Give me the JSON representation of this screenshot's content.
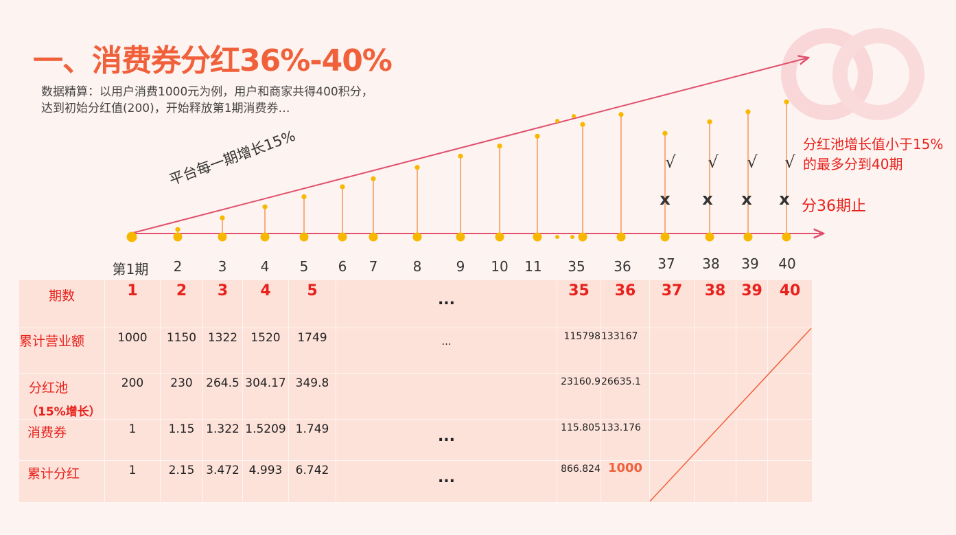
{
  "title": "一、消费券分红36%-40%",
  "subtitle": "数据精算：以用户消费1000元为例，用户和商家共得400积分，达到初始分红值(200)，开始释放第1期消费券…",
  "growth_label": "平台每一期增长15%",
  "note_growth": "分红池增长值小于15%的最多分到40期",
  "note_stop": "分36期止",
  "timeline_ticks": [
    "第1期",
    "2",
    "3",
    "4",
    "5",
    "6",
    "7",
    "8",
    "9",
    "10",
    "11",
    "35",
    "36",
    "37",
    "38",
    "39",
    "40"
  ],
  "check_mark": "√",
  "cross_mark": "x",
  "table": {
    "header_label": "期数",
    "periods": [
      "1",
      "2",
      "3",
      "4",
      "5",
      "...",
      "35",
      "36",
      "37",
      "38",
      "39",
      "40"
    ],
    "rows": [
      {
        "label": "累计营业额",
        "values": [
          "1000",
          "1150",
          "1322",
          "1520",
          "1749",
          "...",
          "115798",
          "133167",
          "",
          "",
          "",
          ""
        ]
      },
      {
        "label": "分红池",
        "label2": "（15%增长）",
        "values": [
          "200",
          "230",
          "264.5",
          "304.17",
          "349.8",
          "",
          "23160.9",
          "26635.1",
          "",
          "",
          "",
          ""
        ]
      },
      {
        "label": "消费券",
        "values": [
          "1",
          "1.15",
          "1.322",
          "1.5209",
          "1.749",
          "...",
          "115.805",
          "133.176",
          "",
          "",
          "",
          ""
        ]
      },
      {
        "label": "累计分红",
        "values": [
          "1",
          "2.15",
          "3.472",
          "4.993",
          "6.742",
          "...",
          "866.824",
          "1000",
          "",
          "",
          "",
          ""
        ]
      }
    ]
  },
  "colors": {
    "title": "#f0603a",
    "accent_red": "#e8211c",
    "axis_line": "#e0506e",
    "dot": "#f8b800",
    "stem": "#f28a40",
    "table_bg": "#fde2da",
    "page_bg": "#fdf3f0"
  }
}
